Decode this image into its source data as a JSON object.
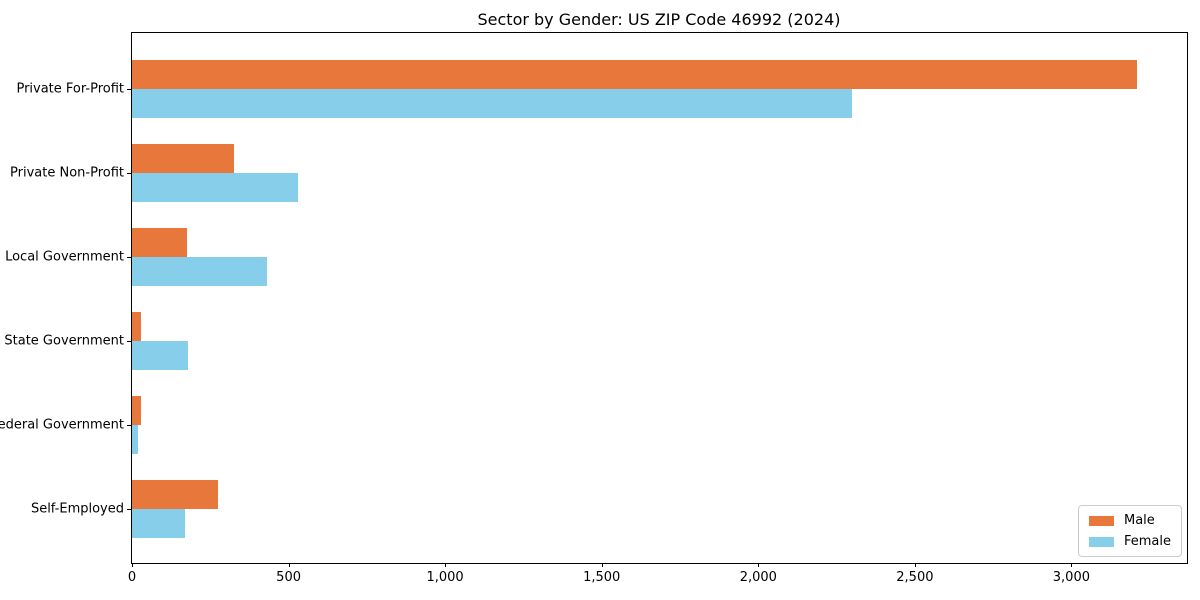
{
  "chart_data": {
    "type": "bar",
    "orientation": "horizontal",
    "title": "Sector by Gender: US ZIP Code 46992 (2024)",
    "categories": [
      "Private For-Profit",
      "Private Non-Profit",
      "Local Government",
      "State Government",
      "Federal Government",
      "Self-Employed"
    ],
    "series": [
      {
        "name": "Male",
        "color": "#e8773b",
        "values": [
          3210,
          325,
          175,
          30,
          30,
          275
        ]
      },
      {
        "name": "Female",
        "color": "#87ceeb",
        "values": [
          2300,
          530,
          430,
          180,
          20,
          170
        ]
      }
    ],
    "xlim": [
      0,
      3369
    ],
    "x_tick_values": [
      0,
      500,
      1000,
      1500,
      2000,
      2500,
      3000
    ],
    "x_tick_labels": [
      "0",
      "500",
      "1,000",
      "1,500",
      "2,000",
      "2,500",
      "3,000"
    ],
    "legend": {
      "entries": [
        "Male",
        "Female"
      ],
      "position": "lower right"
    },
    "grid": false,
    "colors": {
      "male": "#e8773b",
      "female": "#87ceeb",
      "spine": "#000000",
      "legend_border": "#cccccc"
    }
  }
}
